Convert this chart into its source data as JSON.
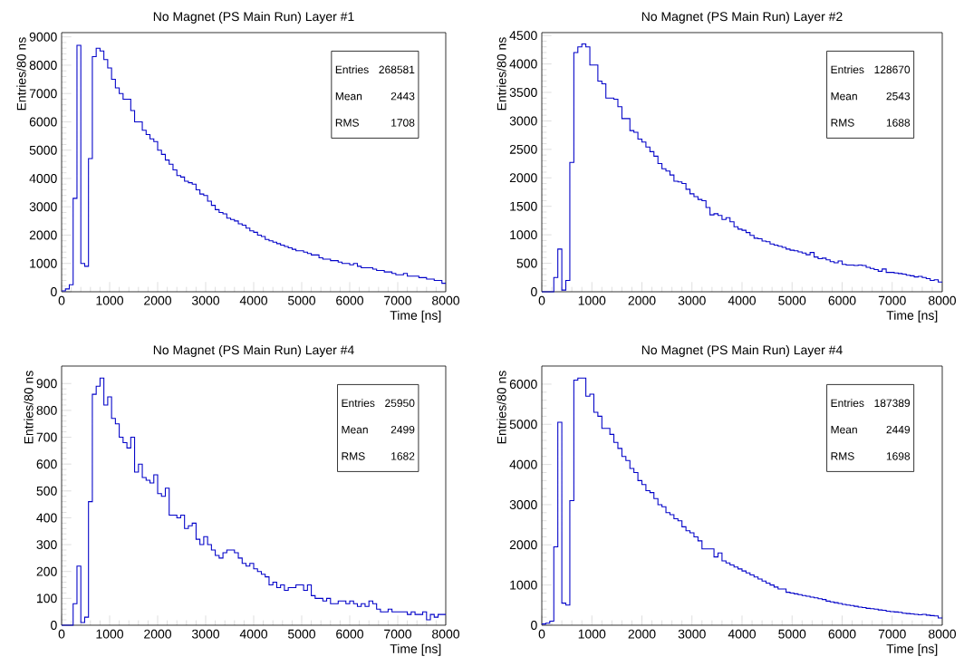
{
  "chart_data": [
    {
      "type": "histogram",
      "title": "No Magnet (PS Main Run) Layer #1",
      "xlabel": "Time [ns]",
      "ylabel": "Entries/80 ns",
      "color": "#0000c8",
      "bins": [
        0,
        80,
        160,
        240,
        320,
        400,
        480,
        560,
        640,
        720,
        800,
        880,
        960,
        1040,
        1120,
        1200,
        1280,
        1360,
        1440,
        1520,
        1600,
        1680,
        1760,
        1840,
        1920,
        2000,
        2080,
        2160,
        2240,
        2320,
        2400,
        2480,
        2560,
        2640,
        2720,
        2800,
        2880,
        2960,
        3040,
        3120,
        3200,
        3280,
        3360,
        3440,
        3520,
        3600,
        3680,
        3760,
        3840,
        3920,
        4000,
        4080,
        4160,
        4240,
        4320,
        4400,
        4480,
        4560,
        4640,
        4720,
        4800,
        4880,
        4960,
        5040,
        5120,
        5200,
        5280,
        5360,
        5440,
        5520,
        5600,
        5680,
        5760,
        5840,
        5920,
        6000,
        6080,
        6160,
        6240,
        6320,
        6400,
        6480,
        6560,
        6640,
        6720,
        6800,
        6880,
        6960,
        7040,
        7120,
        7200,
        7280,
        7360,
        7440,
        7520,
        7600,
        7680,
        7760,
        7840,
        7920,
        8000
      ],
      "values": [
        30,
        100,
        250,
        3300,
        8700,
        1000,
        900,
        4700,
        8300,
        8600,
        8500,
        8200,
        7900,
        7500,
        7200,
        7000,
        6800,
        6800,
        6400,
        6000,
        6000,
        5700,
        5550,
        5400,
        5300,
        5000,
        4850,
        4650,
        4500,
        4300,
        4100,
        4050,
        3900,
        3850,
        3800,
        3600,
        3450,
        3400,
        3200,
        3050,
        2900,
        2800,
        2750,
        2600,
        2550,
        2500,
        2400,
        2350,
        2250,
        2150,
        2100,
        2000,
        1950,
        1850,
        1800,
        1750,
        1700,
        1650,
        1600,
        1550,
        1500,
        1450,
        1450,
        1400,
        1350,
        1300,
        1300,
        1200,
        1150,
        1150,
        1100,
        1100,
        1050,
        1000,
        1000,
        950,
        1000,
        900,
        850,
        850,
        850,
        800,
        750,
        750,
        700,
        700,
        650,
        600,
        600,
        650,
        550,
        550,
        550,
        500,
        500,
        450,
        450,
        400,
        400,
        300
      ],
      "xlim": [
        0,
        8000
      ],
      "xticks": [
        0,
        1000,
        2000,
        3000,
        4000,
        5000,
        6000,
        7000,
        8000
      ],
      "ylim": [
        0,
        9150
      ],
      "yticks": [
        0,
        1000,
        2000,
        3000,
        4000,
        5000,
        6000,
        7000,
        8000,
        9000
      ],
      "annotations": [
        "Entries",
        "268581",
        "Mean",
        "2443",
        "RMS",
        "1708"
      ]
    },
    {
      "type": "histogram",
      "title": "No Magnet (PS Main Run) Layer #2",
      "xlabel": "Time [ns]",
      "ylabel": "Entries/80 ns",
      "color": "#0000c8",
      "bins": [
        0,
        80,
        160,
        240,
        320,
        400,
        480,
        560,
        640,
        720,
        800,
        880,
        960,
        1040,
        1120,
        1200,
        1280,
        1360,
        1440,
        1520,
        1600,
        1680,
        1760,
        1840,
        1920,
        2000,
        2080,
        2160,
        2240,
        2320,
        2400,
        2480,
        2560,
        2640,
        2720,
        2800,
        2880,
        2960,
        3040,
        3120,
        3200,
        3280,
        3360,
        3440,
        3520,
        3600,
        3680,
        3760,
        3840,
        3920,
        4000,
        4080,
        4160,
        4240,
        4320,
        4400,
        4480,
        4560,
        4640,
        4720,
        4800,
        4880,
        4960,
        5040,
        5120,
        5200,
        5280,
        5360,
        5440,
        5520,
        5600,
        5680,
        5760,
        5840,
        5920,
        6000,
        6080,
        6160,
        6240,
        6320,
        6400,
        6480,
        6560,
        6640,
        6720,
        6800,
        6880,
        6960,
        7040,
        7120,
        7200,
        7280,
        7360,
        7440,
        7520,
        7600,
        7680,
        7760,
        7840,
        7920,
        8000
      ],
      "values": [
        0,
        0,
        0,
        250,
        750,
        30,
        200,
        2270,
        4200,
        4300,
        4350,
        4300,
        3980,
        3980,
        3700,
        3650,
        3400,
        3400,
        3380,
        3250,
        3040,
        3040,
        2830,
        2800,
        2680,
        2630,
        2540,
        2460,
        2380,
        2250,
        2160,
        2120,
        2050,
        1940,
        1930,
        1900,
        1800,
        1720,
        1670,
        1620,
        1600,
        1480,
        1350,
        1370,
        1340,
        1270,
        1300,
        1230,
        1140,
        1100,
        1080,
        1040,
        990,
        940,
        930,
        890,
        880,
        840,
        820,
        800,
        780,
        750,
        730,
        720,
        700,
        680,
        650,
        690,
        610,
        580,
        590,
        560,
        530,
        510,
        540,
        480,
        470,
        470,
        460,
        470,
        460,
        430,
        410,
        390,
        360,
        400,
        340,
        340,
        330,
        320,
        310,
        290,
        280,
        260,
        270,
        250,
        230,
        200,
        210,
        170
      ],
      "xlim": [
        0,
        8000
      ],
      "xticks": [
        0,
        1000,
        2000,
        3000,
        4000,
        5000,
        6000,
        7000,
        8000
      ],
      "ylim": [
        0,
        4550
      ],
      "yticks": [
        0,
        500,
        1000,
        1500,
        2000,
        2500,
        3000,
        3500,
        4000,
        4500
      ],
      "annotations": [
        "Entries",
        "128670",
        "Mean",
        "2543",
        "RMS",
        "1688"
      ]
    },
    {
      "type": "histogram",
      "title": "No Magnet (PS Main Run) Layer #4",
      "xlabel": "Time [ns]",
      "ylabel": "Entries/80 ns",
      "color": "#0000c8",
      "bins": [
        0,
        80,
        160,
        240,
        320,
        400,
        480,
        560,
        640,
        720,
        800,
        880,
        960,
        1040,
        1120,
        1200,
        1280,
        1360,
        1440,
        1520,
        1600,
        1680,
        1760,
        1840,
        1920,
        2000,
        2080,
        2160,
        2240,
        2320,
        2400,
        2480,
        2560,
        2640,
        2720,
        2800,
        2880,
        2960,
        3040,
        3120,
        3200,
        3280,
        3360,
        3440,
        3520,
        3600,
        3680,
        3760,
        3840,
        3920,
        4000,
        4080,
        4160,
        4240,
        4320,
        4400,
        4480,
        4560,
        4640,
        4720,
        4800,
        4880,
        4960,
        5040,
        5120,
        5200,
        5280,
        5360,
        5440,
        5520,
        5600,
        5680,
        5760,
        5840,
        5920,
        6000,
        6080,
        6160,
        6240,
        6320,
        6400,
        6480,
        6560,
        6640,
        6720,
        6800,
        6880,
        6960,
        7040,
        7120,
        7200,
        7280,
        7360,
        7440,
        7520,
        7600,
        7680,
        7760,
        7840,
        7920,
        8000
      ],
      "values": [
        0,
        0,
        0,
        80,
        220,
        10,
        30,
        460,
        860,
        890,
        920,
        820,
        850,
        770,
        750,
        700,
        680,
        660,
        700,
        570,
        600,
        550,
        540,
        530,
        560,
        490,
        480,
        510,
        410,
        410,
        400,
        410,
        360,
        370,
        380,
        320,
        300,
        330,
        300,
        280,
        260,
        250,
        270,
        280,
        280,
        270,
        250,
        230,
        220,
        230,
        210,
        200,
        190,
        180,
        150,
        160,
        140,
        150,
        130,
        140,
        140,
        150,
        150,
        130,
        150,
        110,
        100,
        100,
        90,
        100,
        80,
        80,
        90,
        90,
        80,
        90,
        80,
        70,
        80,
        70,
        90,
        80,
        60,
        50,
        50,
        60,
        50,
        50,
        50,
        50,
        40,
        50,
        40,
        40,
        50,
        20,
        40,
        30,
        40,
        40
      ],
      "xlim": [
        0,
        8000
      ],
      "xticks": [
        0,
        1000,
        2000,
        3000,
        4000,
        5000,
        6000,
        7000,
        8000
      ],
      "ylim": [
        0,
        965
      ],
      "yticks": [
        0,
        100,
        200,
        300,
        400,
        500,
        600,
        700,
        800,
        900
      ],
      "annotations": [
        "Entries",
        "25950",
        "Mean",
        "2499",
        "RMS",
        "1682"
      ]
    },
    {
      "type": "histogram",
      "title": "No Magnet (PS Main Run) Layer #4",
      "xlabel": "Time [ns]",
      "ylabel": "Entries/80 ns",
      "color": "#0000c8",
      "bins": [
        0,
        80,
        160,
        240,
        320,
        400,
        480,
        560,
        640,
        720,
        800,
        880,
        960,
        1040,
        1120,
        1200,
        1280,
        1360,
        1440,
        1520,
        1600,
        1680,
        1760,
        1840,
        1920,
        2000,
        2080,
        2160,
        2240,
        2320,
        2400,
        2480,
        2560,
        2640,
        2720,
        2800,
        2880,
        2960,
        3040,
        3120,
        3200,
        3280,
        3360,
        3440,
        3520,
        3600,
        3680,
        3760,
        3840,
        3920,
        4000,
        4080,
        4160,
        4240,
        4320,
        4400,
        4480,
        4560,
        4640,
        4720,
        4800,
        4880,
        4960,
        5040,
        5120,
        5200,
        5280,
        5360,
        5440,
        5520,
        5600,
        5680,
        5760,
        5840,
        5920,
        6000,
        6080,
        6160,
        6240,
        6320,
        6400,
        6480,
        6560,
        6640,
        6720,
        6800,
        6880,
        6960,
        7040,
        7120,
        7200,
        7280,
        7360,
        7440,
        7520,
        7600,
        7680,
        7760,
        7840,
        7920,
        8000
      ],
      "values": [
        30,
        50,
        100,
        1950,
        5050,
        550,
        500,
        3100,
        6100,
        6150,
        6150,
        5700,
        5750,
        5300,
        5200,
        4900,
        4900,
        4750,
        4550,
        4400,
        4200,
        4100,
        3900,
        3800,
        3600,
        3500,
        3350,
        3300,
        3150,
        3000,
        2950,
        2800,
        2750,
        2650,
        2600,
        2450,
        2350,
        2300,
        2200,
        2100,
        1900,
        1900,
        1900,
        1700,
        1800,
        1600,
        1550,
        1500,
        1450,
        1400,
        1350,
        1300,
        1250,
        1200,
        1150,
        1100,
        1050,
        1000,
        950,
        900,
        900,
        820,
        800,
        780,
        760,
        740,
        720,
        700,
        680,
        660,
        640,
        600,
        580,
        560,
        540,
        520,
        500,
        490,
        470,
        450,
        440,
        420,
        410,
        400,
        380,
        370,
        350,
        340,
        330,
        320,
        300,
        290,
        280,
        270,
        260,
        270,
        250,
        240,
        230,
        180
      ],
      "xlim": [
        0,
        8000
      ],
      "xticks": [
        0,
        1000,
        2000,
        3000,
        4000,
        5000,
        6000,
        7000,
        8000
      ],
      "ylim": [
        0,
        6450
      ],
      "yticks": [
        0,
        1000,
        2000,
        3000,
        4000,
        5000,
        6000
      ],
      "annotations": [
        "Entries",
        "187389",
        "Mean",
        "2449",
        "RMS",
        "1698"
      ]
    }
  ]
}
